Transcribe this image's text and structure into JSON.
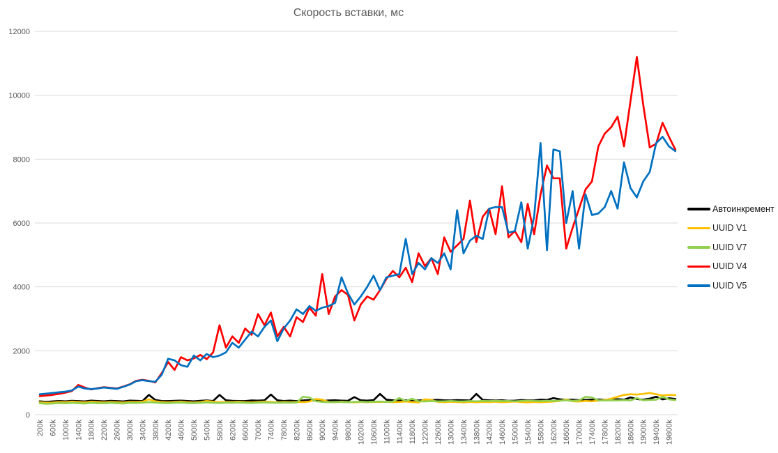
{
  "title": "Скорость вставки, мс",
  "chart_data": {
    "type": "line",
    "title": "Скорость вставки, мс",
    "xlabel": "",
    "ylabel": "",
    "ylim": [
      0,
      12000
    ],
    "y_ticks": [
      0,
      2000,
      4000,
      6000,
      8000,
      10000,
      12000
    ],
    "grid": "horizontal",
    "legend_position": "right",
    "x_unit": "rows inserted",
    "x_start": 200,
    "x_step_k": 200,
    "x_tick_labels": [
      "200k",
      "600k",
      "1000k",
      "1400k",
      "1800k",
      "2200k",
      "2600k",
      "3000k",
      "3400k",
      "3800k",
      "4200k",
      "4600k",
      "5000k",
      "5400k",
      "5800k",
      "6200k",
      "6600k",
      "7000k",
      "7400k",
      "7800k",
      "8200k",
      "8600k",
      "9000k",
      "9400k",
      "9800k",
      "10200k",
      "10600k",
      "11000k",
      "11400k",
      "11800k",
      "12200k",
      "12600k",
      "13000k",
      "13400k",
      "13800k",
      "14200k",
      "14600k",
      "15000k",
      "15400k",
      "15800k",
      "16200k",
      "16600k",
      "17000k",
      "17400k",
      "17800k",
      "18200k",
      "18600k",
      "19000k",
      "19400k",
      "19800k"
    ],
    "series": [
      {
        "name": "Автоинкремент",
        "color": "#000000",
        "values": [
          420,
          400,
          415,
          430,
          420,
          435,
          425,
          415,
          440,
          430,
          420,
          435,
          425,
          415,
          440,
          435,
          425,
          620,
          460,
          430,
          425,
          435,
          440,
          430,
          420,
          435,
          445,
          430,
          620,
          450,
          435,
          430,
          425,
          445,
          440,
          450,
          630,
          450,
          430,
          440,
          425,
          445,
          455,
          440,
          430,
          445,
          450,
          440,
          435,
          550,
          450,
          440,
          455,
          650,
          470,
          450,
          440,
          450,
          455,
          445,
          450,
          455,
          465,
          450,
          445,
          455,
          450,
          445,
          650,
          460,
          450,
          445,
          450,
          435,
          440,
          455,
          450,
          445,
          470,
          460,
          520,
          480,
          465,
          470,
          455,
          460,
          470,
          475,
          465,
          470,
          485,
          470,
          540,
          490,
          470,
          505,
          560,
          480,
          515,
          490
        ]
      },
      {
        "name": "UUID V1",
        "color": "#FFC000",
        "values": [
          390,
          370,
          380,
          400,
          390,
          410,
          395,
          385,
          405,
          395,
          385,
          400,
          390,
          380,
          400,
          395,
          405,
          480,
          420,
          395,
          385,
          400,
          410,
          390,
          380,
          395,
          430,
          405,
          390,
          400,
          395,
          405,
          390,
          385,
          400,
          410,
          395,
          385,
          400,
          390,
          400,
          395,
          410,
          490,
          470,
          400,
          390,
          405,
          395,
          385,
          400,
          390,
          400,
          395,
          405,
          390,
          400,
          410,
          395,
          385,
          480,
          460,
          400,
          390,
          405,
          395,
          385,
          400,
          390,
          400,
          395,
          405,
          390,
          400,
          410,
          395,
          385,
          400,
          390,
          400,
          410,
          430,
          480,
          420,
          410,
          430,
          420,
          440,
          460,
          500,
          560,
          620,
          640,
          630,
          650,
          680,
          640,
          600,
          620,
          610
        ]
      },
      {
        "name": "UUID V7",
        "color": "#92D050",
        "values": [
          360,
          340,
          350,
          365,
          355,
          370,
          360,
          350,
          370,
          360,
          355,
          370,
          360,
          350,
          370,
          365,
          375,
          390,
          380,
          365,
          360,
          370,
          380,
          365,
          360,
          370,
          385,
          370,
          365,
          375,
          370,
          380,
          370,
          365,
          375,
          385,
          375,
          370,
          380,
          375,
          380,
          560,
          540,
          420,
          400,
          390,
          400,
          395,
          390,
          400,
          405,
          395,
          405,
          410,
          400,
          410,
          520,
          430,
          500,
          420,
          415,
          425,
          415,
          420,
          430,
          420,
          415,
          425,
          420,
          430,
          425,
          435,
          425,
          430,
          420,
          430,
          440,
          430,
          425,
          435,
          430,
          440,
          450,
          435,
          445,
          560,
          540,
          450,
          440,
          450,
          445,
          455,
          445,
          520,
          450,
          460,
          470,
          560,
          480,
          455
        ]
      },
      {
        "name": "UUID V4",
        "color": "#FF0000",
        "values": [
          580,
          600,
          620,
          650,
          690,
          740,
          930,
          850,
          790,
          830,
          860,
          840,
          820,
          880,
          950,
          1060,
          1090,
          1060,
          1010,
          1300,
          1650,
          1400,
          1800,
          1700,
          1760,
          1870,
          1740,
          1950,
          2800,
          2100,
          2450,
          2250,
          2700,
          2500,
          3150,
          2800,
          3200,
          2450,
          2750,
          2450,
          3050,
          2900,
          3350,
          3100,
          4400,
          3150,
          3700,
          3900,
          3750,
          2950,
          3450,
          3700,
          3600,
          3900,
          4250,
          4500,
          4300,
          4600,
          4150,
          5050,
          4650,
          4900,
          4400,
          5550,
          5100,
          5300,
          5500,
          6700,
          5400,
          6200,
          6450,
          5650,
          7150,
          5550,
          5750,
          5400,
          6600,
          5650,
          6900,
          7800,
          7400,
          7400,
          5200,
          5850,
          6450,
          7050,
          7300,
          8400,
          8800,
          9000,
          9330,
          8400,
          9800,
          11200,
          9700,
          8370,
          8480,
          9140,
          8700,
          8300
        ]
      },
      {
        "name": "UUID V5",
        "color": "#0070C0",
        "values": [
          640,
          660,
          680,
          700,
          720,
          760,
          880,
          820,
          800,
          820,
          850,
          830,
          810,
          870,
          940,
          1050,
          1080,
          1050,
          1030,
          1250,
          1750,
          1700,
          1550,
          1500,
          1850,
          1700,
          1900,
          1800,
          1850,
          1950,
          2250,
          2100,
          2350,
          2600,
          2450,
          2750,
          2950,
          2300,
          2700,
          2950,
          3300,
          3150,
          3400,
          3250,
          3350,
          3400,
          3500,
          4300,
          3800,
          3450,
          3700,
          4000,
          4350,
          3900,
          4300,
          4350,
          4400,
          5500,
          4400,
          4750,
          4550,
          4900,
          4750,
          5050,
          4550,
          6400,
          5050,
          5450,
          5600,
          5500,
          6450,
          6500,
          6500,
          5700,
          5750,
          6650,
          5200,
          6200,
          8500,
          5150,
          8300,
          8250,
          6000,
          7000,
          5200,
          6900,
          6250,
          6300,
          6500,
          7000,
          6450,
          7900,
          7100,
          6800,
          7300,
          7600,
          8500,
          8700,
          8400,
          8250
        ]
      }
    ]
  },
  "colors": {
    "title_text": "#595959",
    "axis_text": "#595959",
    "gridline": "#D9D9D9",
    "legend_text": "#1a1a1a",
    "background": "#FFFFFF"
  }
}
